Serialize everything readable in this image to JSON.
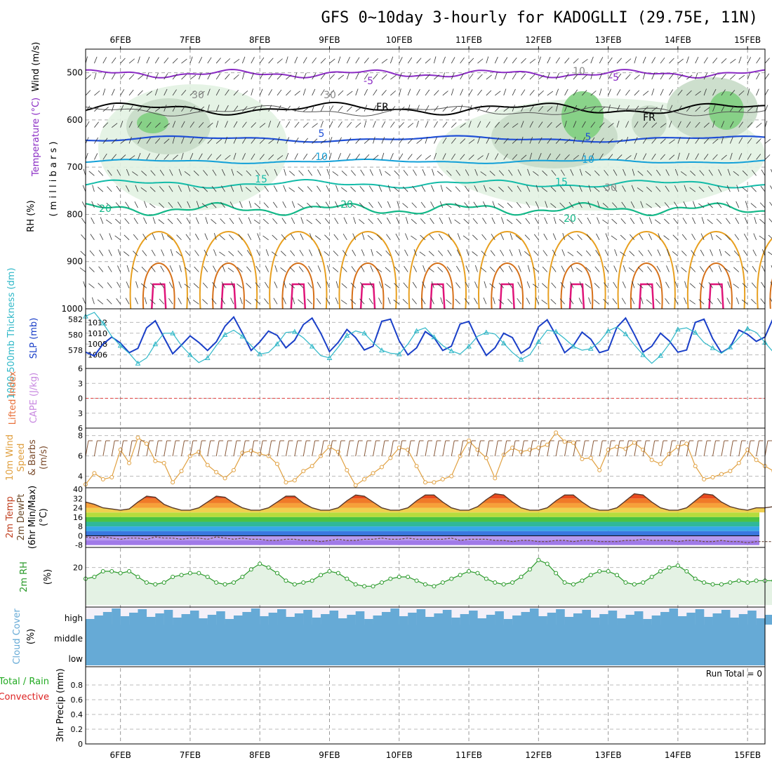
{
  "title": "GFS 0~10day 3-hourly for KADOGLLI (29.75E, 11N)",
  "colors": {
    "purple": "#8a2bc4",
    "black": "#000000",
    "blue": "#1f4fd6",
    "cyan": "#12a0d8",
    "teal": "#12bba8",
    "green": "#13b888",
    "orange": "#e8a020",
    "darkorange": "#d67018",
    "magenta": "#e0157a",
    "slp": "#1a3fc8",
    "thick": "#30b8c8",
    "wind": "#e0a040",
    "rh": "#2a9a2a",
    "cloud": "#66aad6",
    "precip_green": "#22aa22",
    "precip_red": "#dd2222",
    "cape": "#c888e0",
    "lifted": "#e8703a"
  },
  "panels": {
    "upper": {
      "ylabel_wind": "Wind (m/s)",
      "ylabel_temp": "Temperature (°C)",
      "ylabel_rh": "RH (%)",
      "ylabel_units": "( m i l l i b a r s )",
      "yticks": [
        "500",
        "600",
        "700",
        "800",
        "900",
        "1000"
      ],
      "contour_labels": [
        "-5",
        "-5",
        "FR",
        "FR",
        "5",
        "5",
        "10",
        "10",
        "15",
        "15",
        "20",
        "20",
        "20",
        "30",
        "30",
        "30",
        "10"
      ]
    },
    "slp": {
      "ylabel_left": "1000-500mb Thickness (dm)",
      "ylabel_right": "SLP (mb)",
      "yticks_left": [
        "582",
        "580",
        "578"
      ],
      "yticks_right": [
        "1012",
        "1010",
        "1008",
        "1006"
      ]
    },
    "cape": {
      "ylabel_li": "Lifted Index",
      "ylabel_cape": "CAPE (J/kg)",
      "yticks": [
        "-6",
        "-3",
        "0",
        "3",
        "6"
      ]
    },
    "wind10": {
      "ylabel": [
        "10m Wind",
        "Speed",
        "& Barbs",
        "(m/s)"
      ],
      "yticks": [
        "8",
        "6",
        "4"
      ]
    },
    "temp2m": {
      "ylabel": [
        "2m Temp",
        "2m DewPt",
        "(6hr Min/Max)",
        "(°C)"
      ],
      "yticks": [
        "40",
        "32",
        "24",
        "16",
        "8",
        "0",
        "-8"
      ]
    },
    "rh2m": {
      "ylabel": "2m RH",
      "units": "(%)",
      "yticks": [
        "20"
      ]
    },
    "cloud": {
      "ylabel": "Cloud Cover",
      "units": "(%)",
      "levels": [
        "high",
        "middle",
        "low"
      ]
    },
    "precip": {
      "ylabel_total": "Total / Rain",
      "ylabel_conv": "Convective",
      "ylabel_units": "3hr Precip (mm)",
      "yticks": [
        "0.8",
        "0.6",
        "0.4",
        "0.2",
        "0"
      ],
      "run_total": "Run Total = 0"
    }
  },
  "chart_data": {
    "type": "line",
    "x_labels": [
      "6FEB",
      "7FEB",
      "8FEB",
      "9FEB",
      "10FEB",
      "11FEB",
      "12FEB",
      "13FEB",
      "14FEB",
      "15FEB"
    ],
    "x_range_days": [
      5.5,
      15.25
    ],
    "slp_mb": [
      1006.5,
      1005.8,
      1008.0,
      1009.3,
      1008.2,
      1006.4,
      1007.2,
      1011.0,
      1012.3,
      1009.2,
      1006.2,
      1007.8,
      1009.5,
      1008.3,
      1006.8,
      1008.4,
      1011.3,
      1013.0,
      1010.0,
      1006.8,
      1008.4,
      1010.4,
      1009.6,
      1007.3,
      1008.7,
      1011.6,
      1012.8,
      1010.0,
      1006.6,
      1008.3,
      1010.7,
      1009.2,
      1006.9,
      1007.6,
      1012.2,
      1012.6,
      1008.6,
      1006.0,
      1007.3,
      1010.3,
      1009.2,
      1006.8,
      1007.6,
      1011.7,
      1012.2,
      1008.7,
      1005.9,
      1007.3,
      1010.0,
      1009.2,
      1006.3,
      1007.4,
      1011.2,
      1012.5,
      1009.6,
      1006.4,
      1007.7,
      1010.2,
      1008.9,
      1006.4,
      1006.9,
      1011.1,
      1012.8,
      1009.8,
      1006.5,
      1007.6,
      1010.0,
      1008.6,
      1006.5,
      1006.9,
      1012.0,
      1012.6,
      1009.0,
      1006.4,
      1007.4,
      1010.6,
      1009.8,
      1008.5,
      1009.3,
      1013.0
    ],
    "thickness_dm": [
      582.4,
      582.9,
      581.5,
      579.8,
      578.6,
      577.6,
      576.3,
      577.0,
      578.8,
      580.2,
      580.2,
      578.6,
      577.4,
      576.4,
      577.0,
      578.6,
      580.0,
      580.6,
      579.8,
      578.6,
      577.5,
      577.7,
      578.8,
      580.3,
      580.4,
      579.6,
      578.5,
      577.3,
      577.0,
      578.4,
      579.9,
      580.5,
      580.2,
      579.0,
      578.0,
      577.6,
      577.5,
      578.8,
      580.5,
      580.9,
      579.7,
      578.6,
      577.9,
      577.5,
      578.5,
      579.8,
      580.3,
      580.1,
      578.9,
      577.7,
      576.8,
      577.4,
      579.1,
      580.6,
      580.4,
      579.5,
      578.5,
      578.0,
      578.2,
      579.1,
      580.5,
      581.0,
      580.1,
      578.7,
      577.4,
      576.3,
      577.3,
      578.8,
      580.7,
      580.9,
      580.3,
      579.0,
      578.3,
      577.6,
      578.4,
      579.6,
      580.8,
      580.3,
      579.0,
      577.7
    ],
    "wind10_ms": [
      3.2,
      4.3,
      3.7,
      3.9,
      6.6,
      5.3,
      7.8,
      7.2,
      5.5,
      5.3,
      3.4,
      4.5,
      6.0,
      6.4,
      5.1,
      4.4,
      3.8,
      4.6,
      6.3,
      6.5,
      6.2,
      6.0,
      5.2,
      3.4,
      3.6,
      4.5,
      5.0,
      6.0,
      6.9,
      6.4,
      4.6,
      3.1,
      3.7,
      4.3,
      4.9,
      5.8,
      6.8,
      6.6,
      5.0,
      3.4,
      3.4,
      3.7,
      4.0,
      6.0,
      7.5,
      6.6,
      5.8,
      3.8,
      6.1,
      6.8,
      6.4,
      6.6,
      6.8,
      7.1,
      8.3,
      7.4,
      7.3,
      5.7,
      5.8,
      4.6,
      6.6,
      6.9,
      6.7,
      7.3,
      6.6,
      5.6,
      5.2,
      6.2,
      6.9,
      7.2,
      5.0,
      3.7,
      3.9,
      4.2,
      4.5,
      5.3,
      6.6,
      5.6,
      5.0,
      4.5
    ],
    "temp2m_c": [
      29,
      27,
      24,
      23,
      22,
      23,
      29,
      34,
      33,
      27,
      24,
      22,
      22,
      24,
      29,
      34,
      33,
      28,
      24,
      22,
      22,
      24,
      29,
      34,
      34,
      28,
      24,
      22,
      22,
      24,
      30,
      35,
      34,
      29,
      24,
      22,
      22,
      24,
      30,
      35,
      35,
      29,
      24,
      22,
      22,
      25,
      31,
      36,
      35,
      29,
      24,
      22,
      22,
      24,
      30,
      35,
      35,
      29,
      24,
      22,
      22,
      24,
      30,
      36,
      35,
      29,
      24,
      22,
      22,
      24,
      30,
      36,
      35,
      29,
      25,
      23,
      22,
      24,
      24,
      25
    ],
    "dewpt2m_c": [
      -1,
      -2,
      -1,
      -2,
      -3,
      -2,
      -2,
      -3,
      -1,
      -2,
      -2,
      -3,
      -2,
      -2,
      -3,
      -1,
      -2,
      -3,
      -2,
      -3,
      -3,
      -4,
      -4,
      -3,
      -3,
      -4,
      -4,
      -5,
      -4,
      -3,
      -4,
      -4,
      -3,
      -3,
      -2,
      -3,
      -3,
      -2,
      -3,
      -3,
      -3,
      -3,
      -2,
      -4,
      -3,
      -3,
      -3,
      -4,
      -4,
      -5,
      -4,
      -4,
      -5,
      -5,
      -4,
      -4,
      -5,
      -4,
      -4,
      -5,
      -5,
      -5,
      -4,
      -4,
      -3,
      -4,
      -4,
      -4,
      -5,
      -4,
      -4,
      -5,
      -5,
      -4,
      -5,
      -5,
      -6,
      -5,
      -5,
      -5
    ],
    "rh2m_pct": [
      14,
      15,
      18,
      18,
      17,
      18,
      15,
      12,
      11,
      12,
      15,
      16,
      17,
      17,
      15,
      12,
      11,
      12,
      15,
      19,
      22,
      20,
      17,
      13,
      11,
      12,
      13,
      16,
      18,
      17,
      14,
      11,
      10,
      10,
      12,
      14,
      15,
      15,
      13,
      11,
      10,
      12,
      14,
      16,
      18,
      17,
      14,
      12,
      11,
      12,
      15,
      19,
      24,
      22,
      17,
      12,
      11,
      13,
      16,
      18,
      18,
      16,
      12,
      11,
      12,
      15,
      18,
      20,
      21,
      18,
      14,
      12,
      11,
      11,
      12,
      13,
      12,
      13,
      13,
      13
    ],
    "rh2m_range": [
      0,
      30
    ],
    "slp_range": [
      1004,
      1014
    ],
    "thickness_range": [
      576,
      583
    ],
    "wind10_range": [
      3,
      8.6
    ],
    "temp_range": [
      -10,
      40
    ],
    "precip_range": [
      0,
      1
    ]
  }
}
